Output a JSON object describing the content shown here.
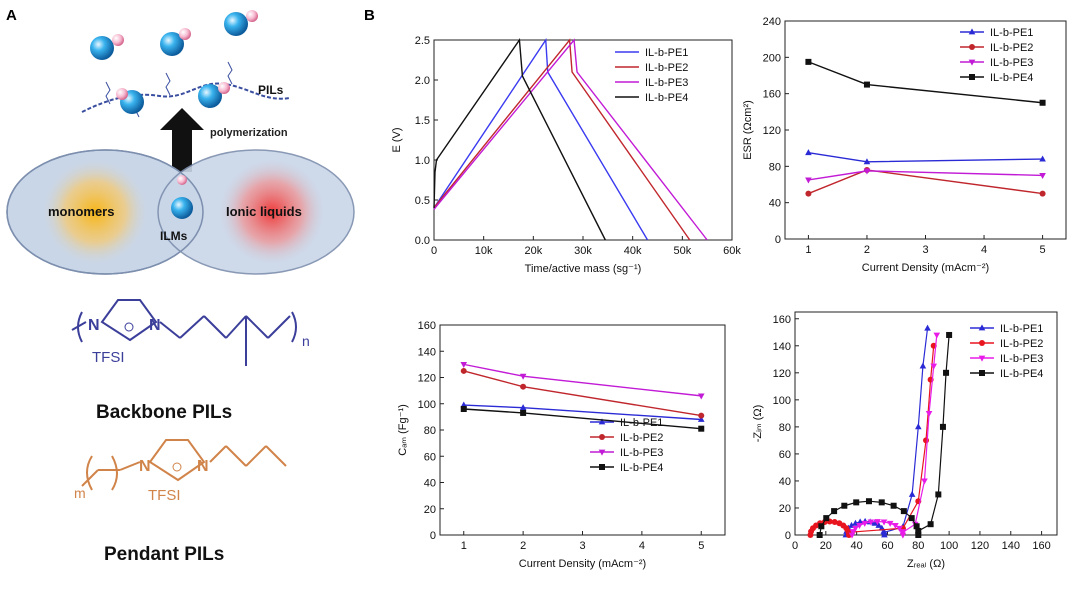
{
  "panel_labels": {
    "a": "A",
    "b": "B"
  },
  "schematic": {
    "pils_label": "PILs",
    "polymerization_label": "polymerization",
    "monomers_label": "monomers",
    "ilms_label": "ILMs",
    "ionic_liquids_label": "Ionic liquids",
    "backbone_caption": "Backbone PILs",
    "pendant_caption": "Pendant PILs",
    "tfsi_label": "TFSI",
    "n_label": "n",
    "m_label": "m",
    "nitrogen": "N",
    "colors": {
      "backbone": "#3b3f9a",
      "pendant": "#d1844a",
      "monomer_glow": "#f2b21c",
      "il_glow": "#ee4444",
      "ellipse": "#c9d6e8"
    }
  },
  "chart_data": [
    {
      "id": "gcd",
      "type": "line",
      "xlabel": "Time/active mass (sg⁻¹)",
      "ylabel": "E (V)",
      "xlim": [
        0,
        60000
      ],
      "ylim": [
        0,
        2.5
      ],
      "xticks": [
        "0",
        "10k",
        "20k",
        "30k",
        "40k",
        "50k",
        "60k"
      ],
      "yticks": [
        "0.0",
        "0.5",
        "1.0",
        "1.5",
        "2.0",
        "2.5"
      ],
      "legend_position": "top-right",
      "series": [
        {
          "name": "IL-b-PE1",
          "color": "#3a3af0",
          "x": [
            0,
            200,
            22500,
            22900,
            43000
          ],
          "y": [
            0.4,
            0.42,
            2.5,
            2.1,
            0
          ]
        },
        {
          "name": "IL-b-PE2",
          "color": "#c0272d",
          "x": [
            0,
            200,
            27300,
            27800,
            51500
          ],
          "y": [
            0.4,
            0.42,
            2.5,
            2.1,
            0
          ]
        },
        {
          "name": "IL-b-PE3",
          "color": "#c21bd6",
          "x": [
            0,
            200,
            28200,
            28800,
            55000
          ],
          "y": [
            0.38,
            0.4,
            2.5,
            2.1,
            0
          ]
        },
        {
          "name": "IL-b-PE4",
          "color": "#111111",
          "x": [
            0,
            200,
            500,
            17200,
            17800,
            34500
          ],
          "y": [
            0.4,
            0.85,
            1.0,
            2.5,
            2.05,
            0
          ]
        }
      ]
    },
    {
      "id": "esr",
      "type": "line",
      "xlabel": "Current Density (mAcm⁻²)",
      "ylabel": "ESR (Ωcm²)",
      "xlim": [
        0.6,
        5.4
      ],
      "ylim": [
        0,
        240
      ],
      "xticks": [
        "1",
        "2",
        "3",
        "4",
        "5"
      ],
      "yticks": [
        "0",
        "40",
        "80",
        "120",
        "160",
        "200",
        "240"
      ],
      "legend_position": "top-right",
      "x": [
        1,
        2,
        5
      ],
      "series": [
        {
          "name": "IL-b-PE1",
          "color": "#2b2bd6",
          "marker": "triangle-up",
          "values": [
            95,
            85,
            88
          ]
        },
        {
          "name": "IL-b-PE2",
          "color": "#c0272d",
          "marker": "circle",
          "values": [
            50,
            76,
            50
          ]
        },
        {
          "name": "IL-b-PE3",
          "color": "#c21bd6",
          "marker": "triangle-down",
          "values": [
            65,
            75,
            70
          ]
        },
        {
          "name": "IL-b-PE4",
          "color": "#111111",
          "marker": "square",
          "values": [
            195,
            170,
            150
          ]
        }
      ]
    },
    {
      "id": "cam",
      "type": "line",
      "xlabel": "Current Density (mAcm⁻²)",
      "ylabel": "Cₐₘ (Fg⁻¹)",
      "xlim": [
        0.6,
        5.4
      ],
      "ylim": [
        0,
        160
      ],
      "xticks": [
        "1",
        "2",
        "3",
        "4",
        "5"
      ],
      "yticks": [
        "0",
        "20",
        "40",
        "60",
        "80",
        "100",
        "120",
        "140",
        "160"
      ],
      "legend_position": "bottom-right",
      "x": [
        1,
        2,
        5
      ],
      "series": [
        {
          "name": "IL-b-PE1",
          "color": "#2b2bd6",
          "marker": "triangle-up",
          "values": [
            99,
            97,
            88
          ]
        },
        {
          "name": "IL-b-PE2",
          "color": "#c0272d",
          "marker": "circle",
          "values": [
            125,
            113,
            91
          ]
        },
        {
          "name": "IL-b-PE3",
          "color": "#c21bd6",
          "marker": "triangle-down",
          "values": [
            130,
            121,
            106
          ]
        },
        {
          "name": "IL-b-PE4",
          "color": "#111111",
          "marker": "square",
          "values": [
            96,
            93,
            81
          ]
        }
      ]
    },
    {
      "id": "nyquist",
      "type": "scatter",
      "xlabel": "Zᵣₑₐₗ (Ω)",
      "ylabel": "-Zᵢₘ (Ω)",
      "xlim": [
        0,
        170
      ],
      "ylim": [
        0,
        165
      ],
      "xticks": [
        "0",
        "20",
        "40",
        "60",
        "80",
        "100",
        "120",
        "140",
        "160"
      ],
      "yticks": [
        "0",
        "20",
        "40",
        "60",
        "80",
        "100",
        "120",
        "140",
        "160"
      ],
      "legend_position": "top-right",
      "series": [
        {
          "name": "IL-b-PE1",
          "color": "#2b2bd6",
          "marker": "triangle-up",
          "semicircle": {
            "r0": 33,
            "r1": 58,
            "peak": 10
          },
          "tail_x": [
            58,
            70,
            76,
            80,
            83,
            86
          ],
          "tail_y": [
            2,
            6,
            30,
            80,
            125,
            153
          ]
        },
        {
          "name": "IL-b-PE2",
          "color": "#e8151f",
          "marker": "circle",
          "semicircle": {
            "r0": 10,
            "r1": 35,
            "peak": 10
          },
          "tail_x": [
            35,
            70,
            80,
            85,
            88,
            90
          ],
          "tail_y": [
            2,
            5,
            25,
            70,
            115,
            140
          ]
        },
        {
          "name": "IL-b-PE3",
          "color": "#e81be8",
          "marker": "triangle-down",
          "semicircle": {
            "r0": 37,
            "r1": 70,
            "peak": 10
          },
          "tail_x": [
            70,
            78,
            84,
            87,
            90,
            92
          ],
          "tail_y": [
            2,
            8,
            40,
            90,
            125,
            148
          ]
        },
        {
          "name": "IL-b-PE4",
          "color": "#111111",
          "marker": "square",
          "semicircle": {
            "r0": 16,
            "r1": 80,
            "peak": 25
          },
          "tail_x": [
            80,
            88,
            93,
            96,
            98,
            100
          ],
          "tail_y": [
            3,
            8,
            30,
            80,
            120,
            148
          ]
        }
      ]
    }
  ]
}
